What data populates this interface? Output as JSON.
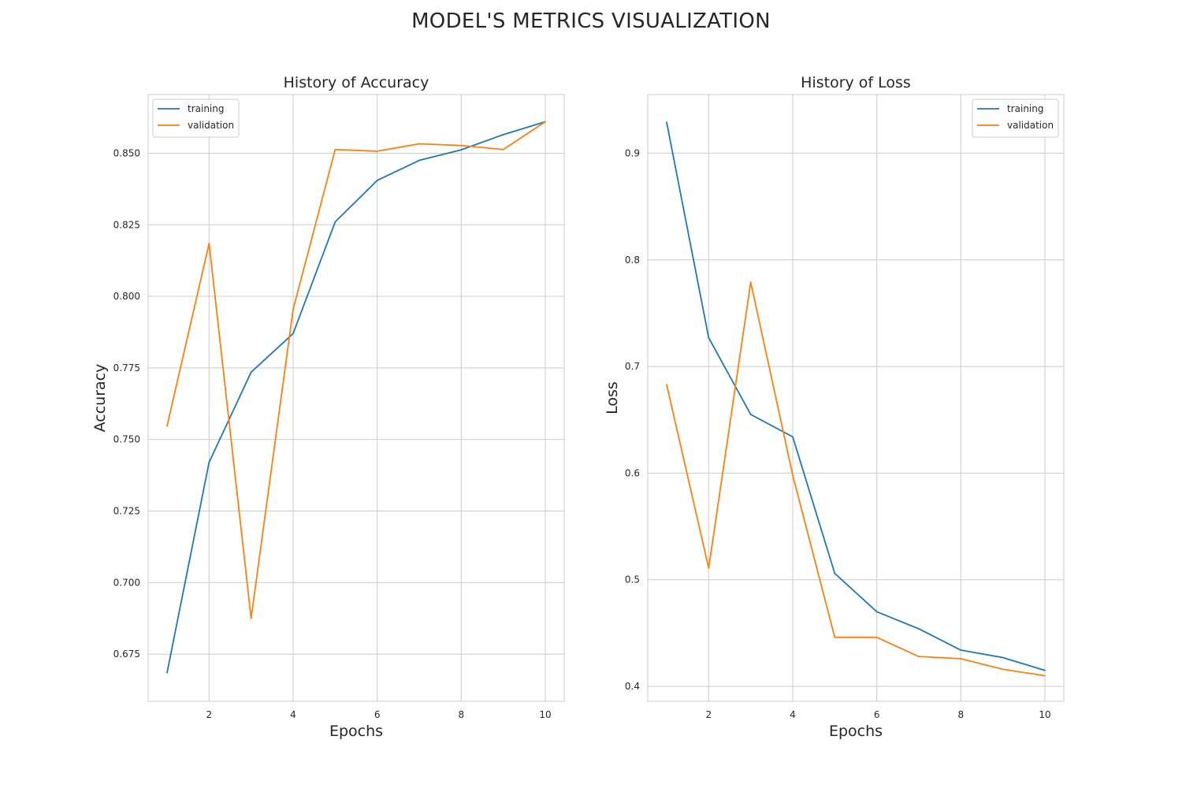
{
  "suptitle": "MODEL'S METRICS VISUALIZATION",
  "chart_data": [
    {
      "type": "line",
      "title": "History of Accuracy",
      "xlabel": "Epochs",
      "ylabel": "Accuracy",
      "x": [
        1,
        2,
        3,
        4,
        5,
        6,
        7,
        8,
        9,
        10
      ],
      "xticks": [
        2,
        4,
        6,
        8,
        10
      ],
      "xticklabels": [
        "2",
        "4",
        "6",
        "8",
        "10"
      ],
      "yticks": [
        0.675,
        0.7,
        0.725,
        0.75,
        0.775,
        0.8,
        0.825,
        0.85
      ],
      "yticklabels": [
        "0.675",
        "0.700",
        "0.725",
        "0.750",
        "0.775",
        "0.800",
        "0.825",
        "0.850"
      ],
      "xlim": [
        0.55,
        10.45
      ],
      "ylim": [
        0.6585,
        0.8705
      ],
      "grid": true,
      "legend_position": "upper-left",
      "series": [
        {
          "name": "training",
          "color": "#1f77b4",
          "values": [
            0.6685,
            0.742,
            0.7735,
            0.787,
            0.826,
            0.8405,
            0.8475,
            0.8512,
            0.8565,
            0.861
          ]
        },
        {
          "name": "validation",
          "color": "#ff7f0e",
          "values": [
            0.7547,
            0.8185,
            0.6875,
            0.7955,
            0.8513,
            0.8507,
            0.8533,
            0.8527,
            0.8513,
            0.861
          ]
        }
      ]
    },
    {
      "type": "line",
      "title": "History of Loss",
      "xlabel": "Epochs",
      "ylabel": "Loss",
      "x": [
        1,
        2,
        3,
        4,
        5,
        6,
        7,
        8,
        9,
        10
      ],
      "xticks": [
        2,
        4,
        6,
        8,
        10
      ],
      "xticklabels": [
        "2",
        "4",
        "6",
        "8",
        "10"
      ],
      "yticks": [
        0.4,
        0.5,
        0.6,
        0.7,
        0.8,
        0.9
      ],
      "yticklabels": [
        "0.4",
        "0.5",
        "0.6",
        "0.7",
        "0.8",
        "0.9"
      ],
      "xlim": [
        0.55,
        10.45
      ],
      "ylim": [
        0.386,
        0.955
      ],
      "grid": true,
      "legend_position": "upper-right",
      "series": [
        {
          "name": "training",
          "color": "#1f77b4",
          "values": [
            0.929,
            0.727,
            0.655,
            0.634,
            0.506,
            0.47,
            0.454,
            0.434,
            0.427,
            0.415
          ]
        },
        {
          "name": "validation",
          "color": "#ff7f0e",
          "values": [
            0.683,
            0.511,
            0.779,
            0.598,
            0.446,
            0.446,
            0.428,
            0.426,
            0.416,
            0.41
          ]
        }
      ]
    }
  ]
}
